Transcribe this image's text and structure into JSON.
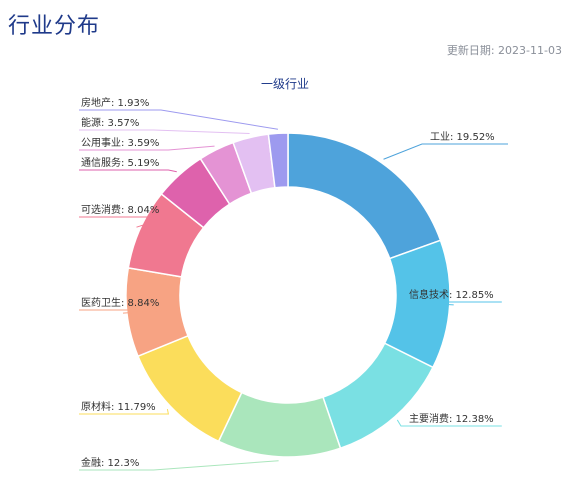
{
  "page": {
    "title": "行业分布",
    "update_date": "更新日期: 2023-11-03"
  },
  "chart_data": {
    "type": "pie",
    "subtype": "donut",
    "title": "一级行业",
    "start": "top, clockwise",
    "slices": [
      {
        "label": "工业: 19.52%",
        "value": 19.52,
        "color": "#4ea3db"
      },
      {
        "label": "信息技术: 12.85%",
        "value": 12.85,
        "color": "#54c3e8"
      },
      {
        "label": "主要消费: 12.38%",
        "value": 12.38,
        "color": "#7ae0e3"
      },
      {
        "label": "金融: 12.3%",
        "value": 12.3,
        "color": "#aae6bc"
      },
      {
        "label": "原材料: 11.79%",
        "value": 11.79,
        "color": "#fbdd5b"
      },
      {
        "label": "医药卫生: 8.84%",
        "value": 8.84,
        "color": "#f7a383"
      },
      {
        "label": "可选消费: 8.04%",
        "value": 8.04,
        "color": "#f07890"
      },
      {
        "label": "通信服务: 5.19%",
        "value": 5.19,
        "color": "#de62ac"
      },
      {
        "label": "公用事业: 3.59%",
        "value": 3.59,
        "color": "#e493d4"
      },
      {
        "label": "能源: 3.57%",
        "value": 3.57,
        "color": "#e3c0f2"
      },
      {
        "label": "房地产: 1.93%",
        "value": 1.93,
        "color": "#9d9aef"
      }
    ],
    "legend": "none",
    "labels": "outside with leader lines"
  }
}
